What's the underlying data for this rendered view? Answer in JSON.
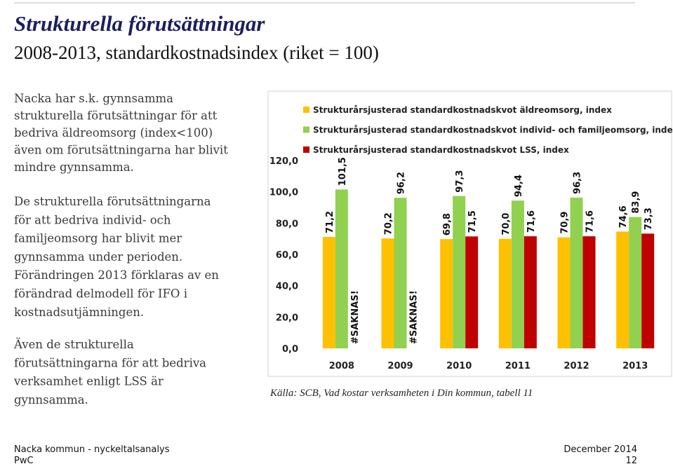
{
  "slide": {
    "title": "Strukturella förutsättningar",
    "subtitle": "2008-2013, standardkostnadsindex (riket = 100)",
    "paragraphs": [
      [
        "Nacka har s.k. gynnsamma",
        "strukturella förutsättningar för att",
        "bedriva äldreomsorg (index<100)",
        "även om förutsättningarna har blivit",
        "mindre gynnsamma."
      ],
      [
        "De strukturella förutsättningarna",
        "för att bedriva individ- och",
        "familjeomsorg har blivit mer",
        "gynnsamma under perioden.",
        "Förändringen 2013 förklaras av en",
        "förändrad delmodell för IFO i",
        "kostnadsutjämningen."
      ],
      [
        "Även de strukturella",
        "förutsättningarna för att bedriva",
        "verksamhet enligt LSS är",
        "gynnsamma."
      ]
    ],
    "source": "Källa: SCB, Vad kostar verksamheten i Din kommun, tabell 11",
    "footer": {
      "left_top": "Nacka kommun - nyckeltalsanalys",
      "left_bottom": "PwC",
      "right_top": "December 2014",
      "right_bottom": "12"
    }
  },
  "chart_data": {
    "type": "bar",
    "categories": [
      "2008",
      "2009",
      "2010",
      "2011",
      "2012",
      "2013"
    ],
    "series": [
      {
        "name": "Strukturårsjusterad standardkostnadskvot äldreomsorg, index",
        "color": "#ffc000",
        "values": [
          71.2,
          70.2,
          69.8,
          70.0,
          70.9,
          74.6
        ],
        "value_labels": [
          "71,2",
          "70,2",
          "69,8",
          "70,0",
          "70,9",
          "74,6"
        ]
      },
      {
        "name": "Strukturårsjusterad standardkostnadskvot individ- och familjeomsorg, index",
        "color": "#92d050",
        "values": [
          101.5,
          96.2,
          97.3,
          94.4,
          96.3,
          83.9
        ],
        "value_labels": [
          "101,5",
          "96,2",
          "97,3",
          "94,4",
          "96,3",
          "83,9"
        ]
      },
      {
        "name": "Strukturårsjusterad standardkostnadskvot LSS, index",
        "color": "#c00000",
        "values": [
          null,
          null,
          71.5,
          71.6,
          71.6,
          73.3
        ],
        "value_labels": [
          "#SAKNAS!",
          "#SAKNAS!",
          "71,5",
          "71,6",
          "71,6",
          "73,3"
        ]
      }
    ],
    "ylim": [
      0,
      120
    ],
    "yticks": [
      {
        "value": 0,
        "label": "0,0"
      },
      {
        "value": 20,
        "label": "20,0"
      },
      {
        "value": 40,
        "label": "40,0"
      },
      {
        "value": 60,
        "label": "60,0"
      },
      {
        "value": 80,
        "label": "80,0"
      },
      {
        "value": 100,
        "label": "100,0"
      },
      {
        "value": 120,
        "label": "120,0"
      }
    ],
    "legend": "top-left"
  }
}
